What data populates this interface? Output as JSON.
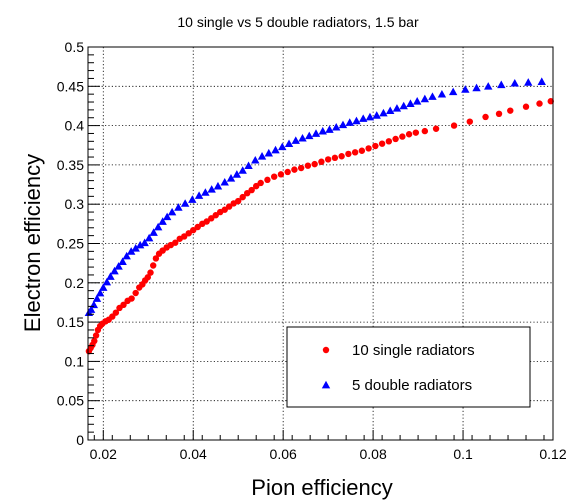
{
  "chart_data": {
    "type": "scatter",
    "title": "10 single vs 5 double radiators, 1.5 bar",
    "xlabel": "Pion efficiency",
    "ylabel": "Electron efficiency",
    "xlim": [
      0.0166,
      0.12
    ],
    "ylim": [
      0,
      0.5
    ],
    "xticks": [
      0.02,
      0.04,
      0.06,
      0.08,
      0.1,
      0.12
    ],
    "xtick_labels": [
      "0.02",
      "0.04",
      "0.06",
      "0.08",
      "0.1",
      "0.12"
    ],
    "yticks": [
      0,
      0.05,
      0.1,
      0.15,
      0.2,
      0.25,
      0.3,
      0.35,
      0.4,
      0.45,
      0.5
    ],
    "ytick_labels": [
      "0",
      "0.05",
      "0.1",
      "0.15",
      "0.2",
      "0.25",
      "0.3",
      "0.35",
      "0.4",
      "0.45",
      "0.5"
    ],
    "grid": true,
    "legend_position": "bottom-right",
    "series": [
      {
        "name": "10 single radiators",
        "marker": "circle",
        "color": "#ff0000",
        "points": [
          [
            0.0168,
            0.113
          ],
          [
            0.0172,
            0.117
          ],
          [
            0.0176,
            0.121
          ],
          [
            0.018,
            0.126
          ],
          [
            0.0184,
            0.133
          ],
          [
            0.0188,
            0.14
          ],
          [
            0.0193,
            0.145
          ],
          [
            0.0198,
            0.148
          ],
          [
            0.0205,
            0.151
          ],
          [
            0.0212,
            0.153
          ],
          [
            0.022,
            0.157
          ],
          [
            0.0228,
            0.162
          ],
          [
            0.0236,
            0.168
          ],
          [
            0.0245,
            0.172
          ],
          [
            0.0254,
            0.177
          ],
          [
            0.0263,
            0.18
          ],
          [
            0.0272,
            0.187
          ],
          [
            0.028,
            0.194
          ],
          [
            0.0287,
            0.198
          ],
          [
            0.0293,
            0.203
          ],
          [
            0.0299,
            0.207
          ],
          [
            0.0305,
            0.213
          ],
          [
            0.0311,
            0.222
          ],
          [
            0.0317,
            0.231
          ],
          [
            0.0324,
            0.237
          ],
          [
            0.0332,
            0.241
          ],
          [
            0.0341,
            0.245
          ],
          [
            0.035,
            0.248
          ],
          [
            0.036,
            0.251
          ],
          [
            0.037,
            0.256
          ],
          [
            0.038,
            0.259
          ],
          [
            0.039,
            0.263
          ],
          [
            0.04,
            0.267
          ],
          [
            0.041,
            0.271
          ],
          [
            0.042,
            0.275
          ],
          [
            0.043,
            0.278
          ],
          [
            0.044,
            0.282
          ],
          [
            0.045,
            0.286
          ],
          [
            0.046,
            0.29
          ],
          [
            0.047,
            0.293
          ],
          [
            0.048,
            0.297
          ],
          [
            0.049,
            0.301
          ],
          [
            0.05,
            0.304
          ],
          [
            0.051,
            0.309
          ],
          [
            0.052,
            0.314
          ],
          [
            0.053,
            0.318
          ],
          [
            0.054,
            0.323
          ],
          [
            0.055,
            0.327
          ],
          [
            0.0565,
            0.331
          ],
          [
            0.058,
            0.335
          ],
          [
            0.0595,
            0.338
          ],
          [
            0.061,
            0.341
          ],
          [
            0.0625,
            0.344
          ],
          [
            0.064,
            0.346
          ],
          [
            0.0655,
            0.349
          ],
          [
            0.067,
            0.351
          ],
          [
            0.0685,
            0.354
          ],
          [
            0.07,
            0.357
          ],
          [
            0.0715,
            0.359
          ],
          [
            0.073,
            0.361
          ],
          [
            0.0745,
            0.364
          ],
          [
            0.076,
            0.366
          ],
          [
            0.0775,
            0.368
          ],
          [
            0.079,
            0.371
          ],
          [
            0.0805,
            0.374
          ],
          [
            0.082,
            0.377
          ],
          [
            0.0835,
            0.38
          ],
          [
            0.085,
            0.383
          ],
          [
            0.0865,
            0.386
          ],
          [
            0.088,
            0.389
          ],
          [
            0.0895,
            0.391
          ],
          [
            0.0915,
            0.393
          ],
          [
            0.094,
            0.396
          ],
          [
            0.098,
            0.4
          ],
          [
            0.1015,
            0.405
          ],
          [
            0.105,
            0.411
          ],
          [
            0.108,
            0.415
          ],
          [
            0.1105,
            0.419
          ],
          [
            0.114,
            0.424
          ],
          [
            0.117,
            0.428
          ],
          [
            0.1195,
            0.431
          ]
        ]
      },
      {
        "name": "5 double radiators",
        "marker": "triangle",
        "color": "#0000ff",
        "points": [
          [
            0.0168,
            0.162
          ],
          [
            0.0173,
            0.166
          ],
          [
            0.0179,
            0.172
          ],
          [
            0.0186,
            0.18
          ],
          [
            0.0193,
            0.187
          ],
          [
            0.02,
            0.194
          ],
          [
            0.0208,
            0.201
          ],
          [
            0.0216,
            0.208
          ],
          [
            0.0225,
            0.215
          ],
          [
            0.0234,
            0.221
          ],
          [
            0.0243,
            0.227
          ],
          [
            0.0252,
            0.234
          ],
          [
            0.0262,
            0.24
          ],
          [
            0.0272,
            0.244
          ],
          [
            0.0282,
            0.248
          ],
          [
            0.0292,
            0.251
          ],
          [
            0.0302,
            0.257
          ],
          [
            0.0312,
            0.264
          ],
          [
            0.0322,
            0.271
          ],
          [
            0.0332,
            0.278
          ],
          [
            0.0342,
            0.284
          ],
          [
            0.0353,
            0.29
          ],
          [
            0.0367,
            0.296
          ],
          [
            0.0382,
            0.301
          ],
          [
            0.0398,
            0.306
          ],
          [
            0.0413,
            0.311
          ],
          [
            0.0427,
            0.315
          ],
          [
            0.0441,
            0.319
          ],
          [
            0.0455,
            0.323
          ],
          [
            0.047,
            0.328
          ],
          [
            0.0484,
            0.333
          ],
          [
            0.0497,
            0.338
          ],
          [
            0.051,
            0.343
          ],
          [
            0.0523,
            0.349
          ],
          [
            0.0538,
            0.356
          ],
          [
            0.0553,
            0.361
          ],
          [
            0.0568,
            0.365
          ],
          [
            0.0583,
            0.369
          ],
          [
            0.0598,
            0.373
          ],
          [
            0.0613,
            0.377
          ],
          [
            0.0628,
            0.381
          ],
          [
            0.0643,
            0.384
          ],
          [
            0.0658,
            0.387
          ],
          [
            0.0673,
            0.39
          ],
          [
            0.0688,
            0.393
          ],
          [
            0.0703,
            0.395
          ],
          [
            0.0718,
            0.398
          ],
          [
            0.0733,
            0.401
          ],
          [
            0.0748,
            0.404
          ],
          [
            0.0763,
            0.406
          ],
          [
            0.0778,
            0.409
          ],
          [
            0.0793,
            0.411
          ],
          [
            0.0808,
            0.413
          ],
          [
            0.0823,
            0.416
          ],
          [
            0.0838,
            0.419
          ],
          [
            0.0853,
            0.422
          ],
          [
            0.0868,
            0.425
          ],
          [
            0.0883,
            0.428
          ],
          [
            0.0898,
            0.431
          ],
          [
            0.0915,
            0.434
          ],
          [
            0.0932,
            0.437
          ],
          [
            0.0953,
            0.44
          ],
          [
            0.0978,
            0.443
          ],
          [
            0.1005,
            0.446
          ],
          [
            0.103,
            0.448
          ],
          [
            0.1056,
            0.45
          ],
          [
            0.1085,
            0.452
          ],
          [
            0.1115,
            0.454
          ],
          [
            0.1145,
            0.455
          ],
          [
            0.1175,
            0.456
          ]
        ]
      }
    ]
  }
}
